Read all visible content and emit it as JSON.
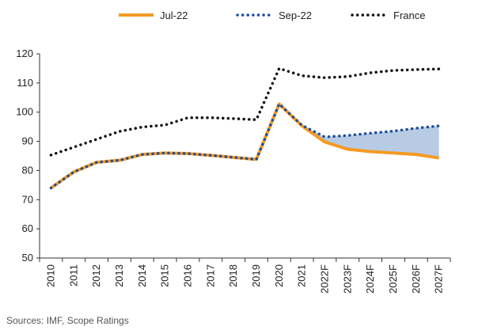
{
  "chart_data": {
    "type": "line",
    "categories": [
      "2010",
      "2011",
      "2012",
      "2013",
      "2014",
      "2015",
      "2016",
      "2017",
      "2018",
      "2019",
      "2020",
      "2021",
      "2022F",
      "2023F",
      "2024F",
      "2025F",
      "2026F",
      "2027F"
    ],
    "ylim": [
      50,
      120
    ],
    "yticks": [
      50,
      60,
      70,
      80,
      90,
      100,
      110,
      120
    ],
    "series": [
      {
        "name": "Jul-22",
        "color": "#f59a23",
        "style": "solid",
        "values": [
          74,
          79.5,
          82.8,
          83.5,
          85.5,
          86,
          85.8,
          85.2,
          84.5,
          83.8,
          102.8,
          95.3,
          89.8,
          87.3,
          86.5,
          86,
          85.5,
          84.3
        ]
      },
      {
        "name": "Sep-22",
        "color": "#1f4e9a",
        "style": "dotted",
        "values": [
          74,
          79.5,
          82.8,
          83.5,
          85.5,
          86,
          85.8,
          85.2,
          84.5,
          83.8,
          102.8,
          95.5,
          91.5,
          92,
          92.8,
          93.5,
          94.5,
          95.3
        ]
      },
      {
        "name": "France",
        "color": "#111111",
        "style": "dotted",
        "values": [
          85.3,
          88,
          90.7,
          93.4,
          94.9,
          95.6,
          98.1,
          98.1,
          97.8,
          97.4,
          115,
          112.5,
          111.8,
          112.2,
          113.5,
          114.3,
          114.6,
          114.8
        ]
      }
    ],
    "shade": {
      "from_index": 12,
      "color": "#b7cce4"
    }
  },
  "source": "Sources: IMF, Scope Ratings"
}
